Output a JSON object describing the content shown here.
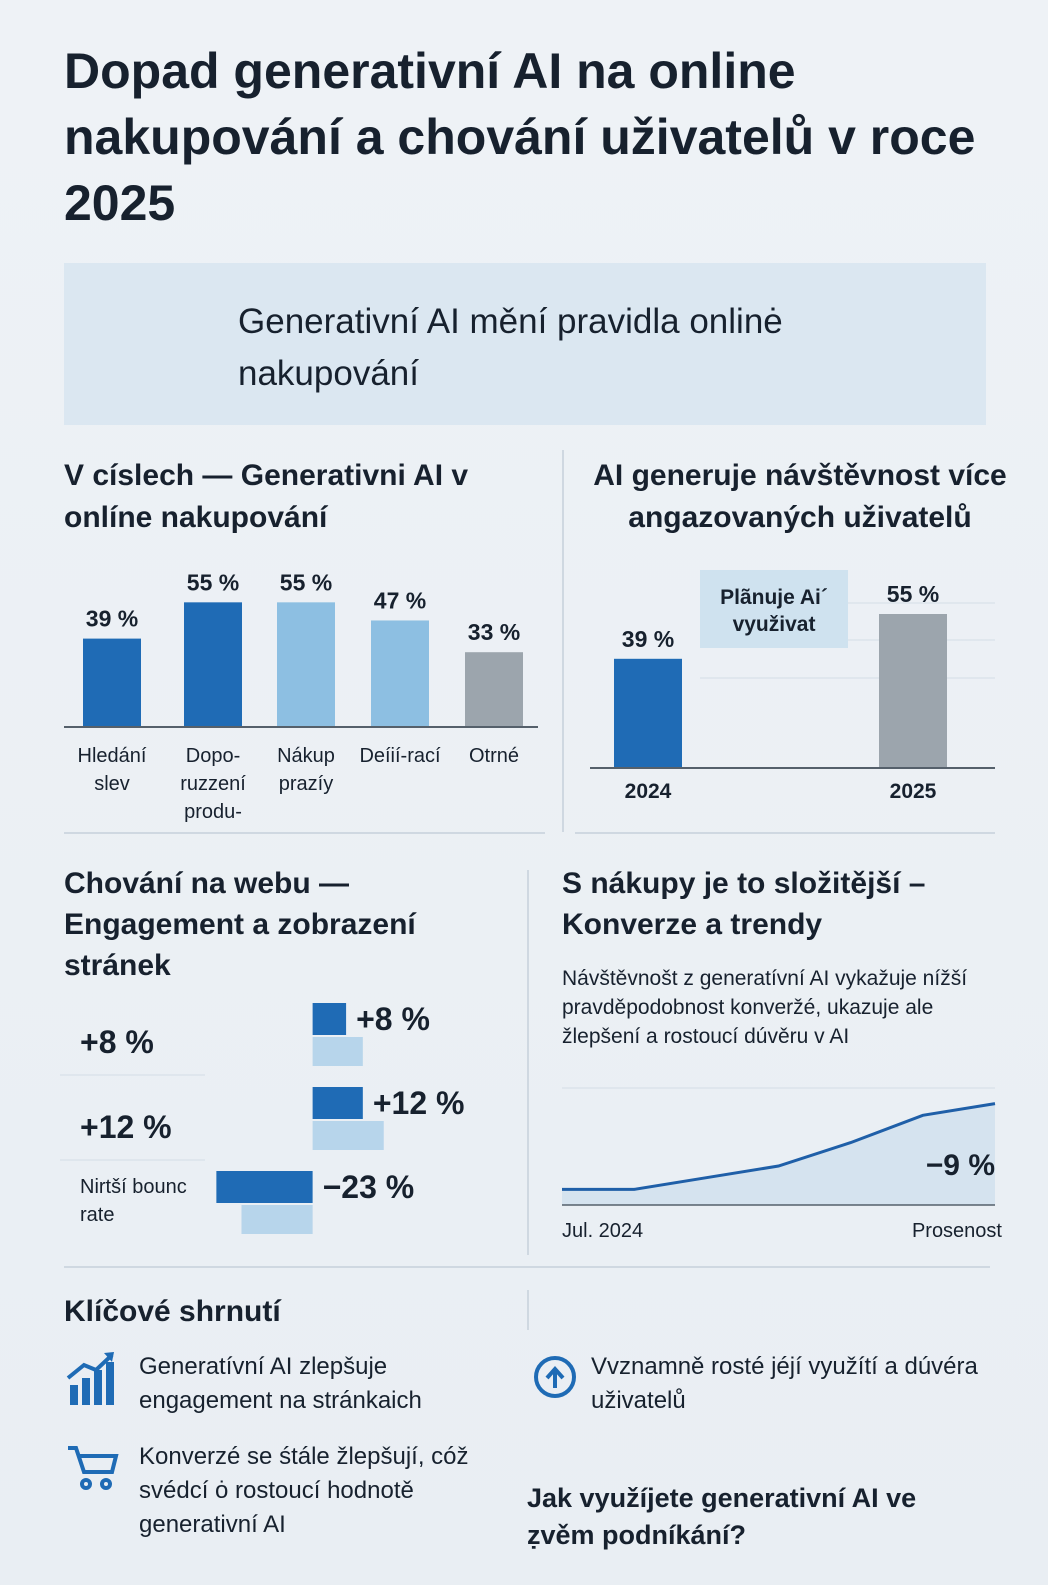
{
  "title": "Dopad generativní AI na online nakupování a chování uživatelů v roce 2025",
  "banner": "Generativní AI mění pravidla onlinė nakupování",
  "chart_data": [
    {
      "type": "bar",
      "title": "V císlech — Generativni AI v onlíne nakupování",
      "categories": [
        "Hledání slev",
        "Dopo-ruzzení produ-",
        "Nákup prazíy",
        "Deíií-rací",
        "Otrné"
      ],
      "values": [
        39,
        55,
        55,
        47,
        33
      ],
      "value_labels": [
        "39 %",
        "55 %",
        "55 %",
        "47 %",
        "33 %"
      ],
      "colors": [
        "#1f6bb5",
        "#1f6bb5",
        "#8dbfe2",
        "#8dbfe2",
        "#9ca5ad"
      ],
      "ylim": [
        0,
        60
      ]
    },
    {
      "type": "bar",
      "title": "AI generuje návštěvnost více angazovaných uživatelů",
      "categories": [
        "2024",
        "2025"
      ],
      "values": [
        39,
        55
      ],
      "value_labels": [
        "39 %",
        "55 %"
      ],
      "colors": [
        "#1f6bb5",
        "#9ca5ad"
      ],
      "annotation": "Plãnuje Ai´ využivat",
      "ylim": [
        0,
        60
      ]
    },
    {
      "type": "barh",
      "title": "Chování na webu — Engagement a zobrazení stránek",
      "categories": [
        "+8 %",
        "+12 %",
        "Nirtší bounc rate"
      ],
      "series": [
        {
          "color": "#1f6bb5",
          "values": [
            8,
            12,
            -23
          ],
          "value_labels": [
            "+8 %",
            "+12 %",
            "−23 %"
          ]
        },
        {
          "color": "#b7d5eb",
          "values": [
            12,
            17,
            -17
          ]
        }
      ],
      "xlim": [
        -25,
        40
      ]
    },
    {
      "type": "line",
      "title": "S nákupy je to složitější – Konverze a trendy",
      "subtitle": "Návštěvnošt z generatívní AI vykažuje nížší pravděpodobnost konveržé, ukazuje ale žlepšení a rostoucí dúvěru v AI",
      "categories": [
        "Jul. 2024",
        null,
        null,
        null,
        null,
        null,
        "Prosenost"
      ],
      "values": [
        4,
        4,
        7,
        10,
        16,
        23,
        26
      ],
      "color": "#1f5fa8",
      "annotation": "−9 %",
      "ylim": [
        0,
        30
      ]
    }
  ],
  "summary": {
    "title": "Klíčové shrnutí",
    "items": [
      "Generatívní AI zlepšuje engagement na stránkaich",
      "Konverzé se śtále žlepšují, cóž svédcí ȯ rostoucí hodnotě generativní AI",
      "Vvznamně rosté jéjí využítí a dúvéra uživatelů"
    ],
    "question": "Jak využíjete generativní AI ve ẓvěm podníkání?"
  }
}
